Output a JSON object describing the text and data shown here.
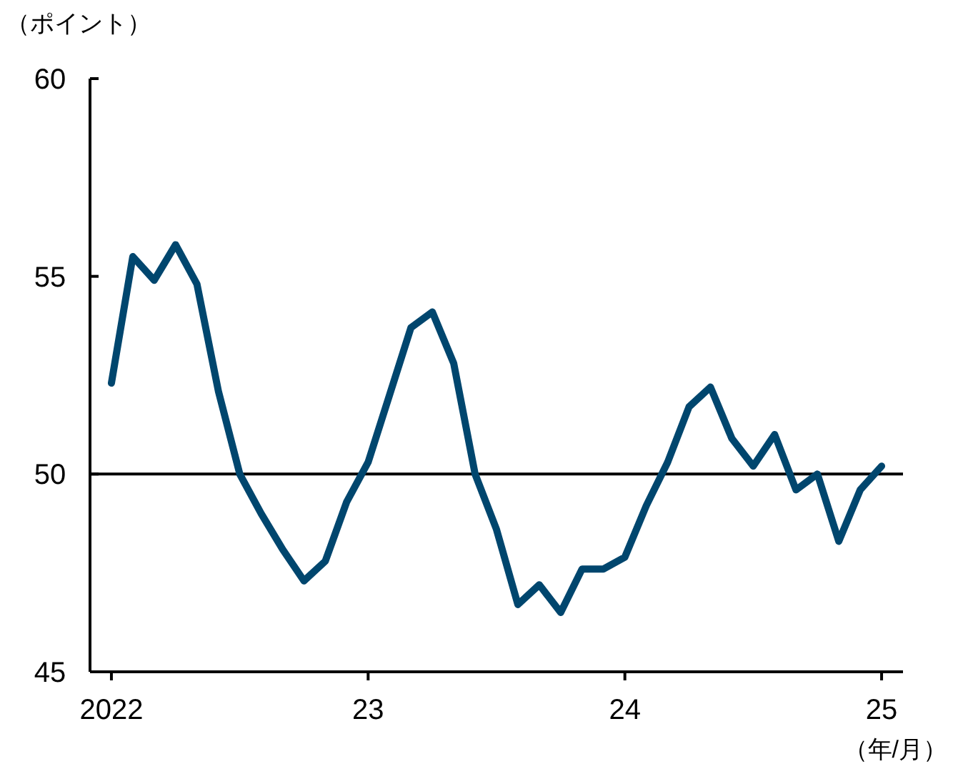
{
  "chart_data": {
    "type": "line",
    "ylabel": "（ポイント）",
    "xlabel": "（年/月）",
    "x": [
      "2022-01",
      "2022-02",
      "2022-03",
      "2022-04",
      "2022-05",
      "2022-06",
      "2022-07",
      "2022-08",
      "2022-09",
      "2022-10",
      "2022-11",
      "2022-12",
      "2023-01",
      "2023-02",
      "2023-03",
      "2023-04",
      "2023-05",
      "2023-06",
      "2023-07",
      "2023-08",
      "2023-09",
      "2023-10",
      "2023-11",
      "2023-12",
      "2024-01",
      "2024-02",
      "2024-03",
      "2024-04",
      "2024-05",
      "2024-06",
      "2024-07",
      "2024-08",
      "2024-09",
      "2024-10",
      "2024-11",
      "2024-12",
      "2025-01"
    ],
    "values": [
      52.3,
      55.5,
      54.9,
      55.8,
      54.8,
      52.1,
      50.0,
      49.0,
      48.1,
      47.3,
      47.8,
      49.3,
      50.3,
      52.0,
      53.7,
      54.1,
      52.8,
      50.0,
      48.6,
      46.7,
      47.2,
      46.5,
      47.6,
      47.6,
      47.9,
      49.2,
      50.3,
      51.7,
      52.2,
      50.9,
      50.2,
      51.0,
      49.6,
      50.0,
      48.3,
      49.6,
      50.2
    ],
    "color": "#00466e",
    "xlim": [
      "2021-12",
      "2025-02"
    ],
    "ylim": [
      45,
      60
    ],
    "xticks": [
      {
        "value": "2022",
        "label": "2022"
      },
      {
        "value": "2023",
        "label": "23"
      },
      {
        "value": "2024",
        "label": "24"
      },
      {
        "value": "2025",
        "label": "25"
      }
    ],
    "yticks": [
      45,
      50,
      55,
      60
    ],
    "ref_lines": [
      {
        "axis": "y",
        "value": 50,
        "color": "#000000"
      }
    ]
  }
}
